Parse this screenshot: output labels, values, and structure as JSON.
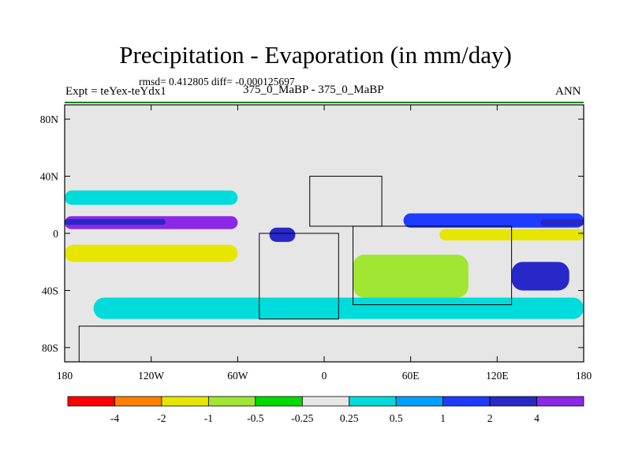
{
  "title": "Precipitation - Evaporation (in mm/day)",
  "stats": "rmsd= 0.412805 diff= -0.000125697",
  "experiment": "Expt = teYex-teYdx1",
  "subtitle": "375_0_MaBP - 375_0_MaBP",
  "season": "ANN",
  "chart_data": {
    "type": "heatmap",
    "title": "Precipitation - Evaporation (in mm/day)",
    "xlabel": "",
    "ylabel": "",
    "xlim": [
      -180,
      180
    ],
    "ylim": [
      -90,
      90
    ],
    "x_ticks": [
      {
        "value": -180,
        "label": "180"
      },
      {
        "value": -120,
        "label": "120W"
      },
      {
        "value": -60,
        "label": "60W"
      },
      {
        "value": 0,
        "label": "0"
      },
      {
        "value": 60,
        "label": "60E"
      },
      {
        "value": 120,
        "label": "120E"
      },
      {
        "value": 180,
        "label": "180"
      }
    ],
    "y_ticks": [
      {
        "value": 80,
        "label": "80N"
      },
      {
        "value": 40,
        "label": "40N"
      },
      {
        "value": 0,
        "label": "0"
      },
      {
        "value": -40,
        "label": "40S"
      },
      {
        "value": -80,
        "label": "80S"
      }
    ],
    "colorbar": {
      "boundaries": [
        "-4",
        "-2",
        "-1",
        "-0.5",
        "-0.25",
        "0.25",
        "0.5",
        "1",
        "2",
        "4"
      ],
      "colors": [
        "#ff0000",
        "#ff8000",
        "#e6e600",
        "#a0e632",
        "#00dc00",
        "#e6e6e6",
        "#00dcdc",
        "#00a0ff",
        "#1e3cff",
        "#2828c8",
        "#8c28e6"
      ]
    },
    "regions": [
      {
        "name": "tropical-pacific-north",
        "class": 10,
        "lon": [
          -180,
          -60
        ],
        "lat": [
          3,
          12
        ]
      },
      {
        "name": "tropical-pacific-north-core",
        "class": 9,
        "lon": [
          -180,
          -110
        ],
        "lat": [
          6,
          10
        ]
      },
      {
        "name": "tropical-atlantic",
        "class": 9,
        "lon": [
          -38,
          -20
        ],
        "lat": [
          -6,
          4
        ]
      },
      {
        "name": "tropical-indian-pacific",
        "class": 8,
        "lon": [
          55,
          180
        ],
        "lat": [
          4,
          14
        ]
      },
      {
        "name": "tropical-indian-pacific-core",
        "class": 9,
        "lon": [
          150,
          180
        ],
        "lat": [
          5,
          10
        ]
      },
      {
        "name": "equatorial-dry-band-east",
        "class": 2,
        "lon": [
          80,
          180
        ],
        "lat": [
          -5,
          3
        ]
      },
      {
        "name": "subtropical-dry-south-west",
        "class": 2,
        "lon": [
          -180,
          -60
        ],
        "lat": [
          -20,
          -8
        ]
      },
      {
        "name": "subtropical-dry-south-east",
        "class": 3,
        "lon": [
          20,
          100
        ],
        "lat": [
          -45,
          -15
        ]
      },
      {
        "name": "storm-track-north",
        "class": 6,
        "lon": [
          -180,
          -60
        ],
        "lat": [
          20,
          30
        ]
      },
      {
        "name": "storm-track-south",
        "class": 6,
        "lon": [
          -160,
          180
        ],
        "lat": [
          -60,
          -45
        ]
      },
      {
        "name": "southeast-pacific-wet",
        "class": 9,
        "lon": [
          130,
          170
        ],
        "lat": [
          -40,
          -20
        ]
      }
    ],
    "land_outlines": [
      {
        "name": "northern-continent",
        "lon": [
          -10,
          40
        ],
        "lat": [
          5,
          40
        ]
      },
      {
        "name": "gondwana-west",
        "lon": [
          -45,
          10
        ],
        "lat": [
          -60,
          0
        ]
      },
      {
        "name": "gondwana-east",
        "lon": [
          20,
          130
        ],
        "lat": [
          -50,
          5
        ]
      },
      {
        "name": "antarctic-margin",
        "lon": [
          -170,
          180
        ],
        "lat": [
          -90,
          -65
        ]
      }
    ]
  }
}
